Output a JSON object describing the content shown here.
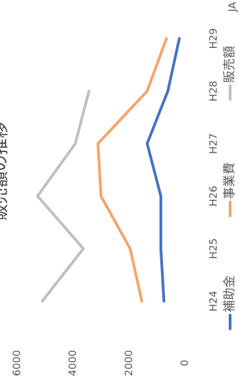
{
  "chart_data": {
    "type": "line",
    "title": "販売額の推移",
    "categories": [
      "H24",
      "H25",
      "H26",
      "H27",
      "H28",
      "H29"
    ],
    "series": [
      {
        "name": "補助金",
        "color": "#4472c4",
        "values": [
          750,
          860,
          860,
          1350,
          610,
          200
        ]
      },
      {
        "name": "事業費",
        "color": "#f4a46a",
        "values": [
          1540,
          1960,
          3000,
          3110,
          1350,
          660
        ]
      },
      {
        "name": "販売額",
        "color": "#bfbfbf",
        "values": [
          5100,
          3630,
          5270,
          3920,
          3430,
          null
        ]
      }
    ],
    "ylim": [
      0,
      6000
    ],
    "yticks": [
      0,
      2000,
      4000,
      6000
    ],
    "grid": false,
    "legend": "bottom",
    "corner_label": "JA"
  }
}
